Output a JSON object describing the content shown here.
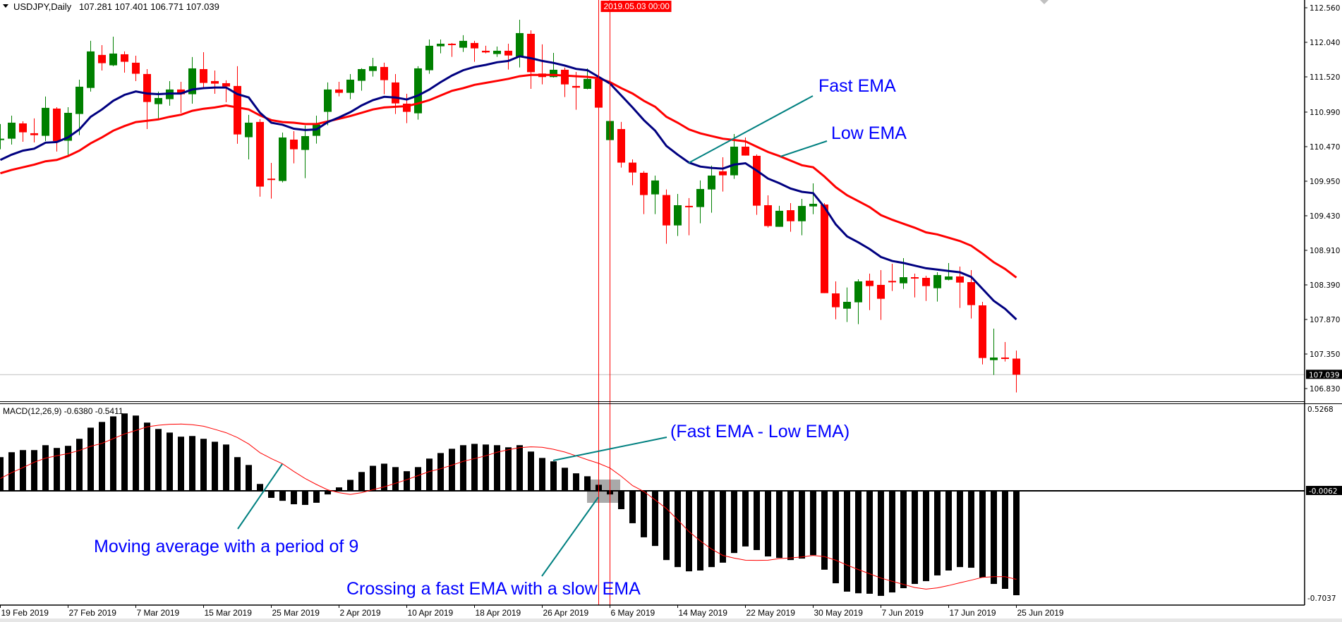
{
  "header": {
    "symbol": "USDJPY,Daily",
    "ohlc": "107.281 107.401 106.771 107.039"
  },
  "macd_header": {
    "label": "MACD(12,26,9) -0.6380 -0.5411"
  },
  "price_axis": {
    "ticks": [
      "112.560",
      "112.040",
      "111.520",
      "110.990",
      "110.470",
      "109.950",
      "109.430",
      "108.910",
      "108.390",
      "107.870",
      "107.350",
      "106.830"
    ],
    "current": "107.039"
  },
  "macd_axis": {
    "top": "0.5268",
    "zero": "-0.0062",
    "bottom": "-0.7037"
  },
  "time_axis": {
    "labels": [
      "19 Feb 2019",
      "27 Feb 2019",
      "7 Mar 2019",
      "15 Mar 2019",
      "25 Mar 2019",
      "2 Apr 2019",
      "10 Apr 2019",
      "18 Apr 2019",
      "26 Apr 2019",
      "6 May 2019",
      "14 May 2019",
      "22 May 2019",
      "30 May 2019",
      "7 Jun 2019",
      "17 Jun 2019",
      "25 Jun 2019"
    ],
    "crosshair_date": "2019.05.03 00:00"
  },
  "annotations": {
    "fast_ema": "Fast EMA",
    "low_ema": "Low EMA",
    "difference": "(Fast EMA - Low EMA)",
    "signal": "Moving average with a period of 9",
    "crossing": "Crossing a fast EMA with a slow EMA"
  },
  "colors": {
    "bull": "#008000",
    "bear": "#ff0000",
    "fast_ema": "#000080",
    "slow_ema": "#ff0000",
    "annotation_text": "#0000ff",
    "annotation_line": "#008080",
    "crosshair": "#ff0000",
    "histogram": "#000000",
    "signal": "#ff0000"
  },
  "chart_data": {
    "type": "candlestick",
    "symbol": "USDJPY",
    "timeframe": "Daily",
    "ylim": [
      106.83,
      112.56
    ],
    "grid": false,
    "ohlc_order": [
      "open",
      "high",
      "low",
      "close"
    ],
    "candles": [
      [
        110.569,
        110.81,
        110.431,
        110.59
      ],
      [
        110.59,
        110.937,
        110.502,
        110.831
      ],
      [
        110.82,
        110.852,
        110.544,
        110.686
      ],
      [
        110.672,
        110.895,
        110.534,
        110.643
      ],
      [
        110.633,
        111.224,
        110.555,
        111.054
      ],
      [
        111.043,
        111.064,
        110.396,
        110.555
      ],
      [
        110.559,
        111.064,
        110.343,
        110.979
      ],
      [
        110.962,
        111.478,
        110.643,
        111.372
      ],
      [
        111.354,
        112.062,
        111.298,
        111.903
      ],
      [
        111.85,
        111.998,
        111.616,
        111.726
      ],
      [
        111.694,
        112.125,
        111.68,
        111.871
      ],
      [
        111.86,
        111.903,
        111.584,
        111.747
      ],
      [
        111.733,
        111.839,
        111.457,
        111.567
      ],
      [
        111.563,
        111.637,
        110.735,
        111.142
      ],
      [
        111.11,
        111.298,
        110.895,
        111.202
      ],
      [
        111.185,
        111.457,
        111.086,
        111.33
      ],
      [
        111.33,
        111.446,
        110.979,
        111.259
      ],
      [
        111.259,
        111.818,
        111.117,
        111.648
      ],
      [
        111.637,
        111.892,
        111.361,
        111.429
      ],
      [
        111.457,
        111.616,
        111.266,
        111.418
      ],
      [
        111.425,
        111.468,
        111.139,
        111.376
      ],
      [
        111.383,
        111.68,
        110.513,
        110.654
      ],
      [
        110.612,
        110.948,
        110.279,
        110.831
      ],
      [
        110.842,
        110.884,
        109.717,
        109.869
      ],
      [
        109.989,
        110.226,
        109.688,
        109.968
      ],
      [
        109.954,
        110.682,
        109.933,
        110.608
      ],
      [
        110.576,
        110.704,
        110.219,
        110.431
      ],
      [
        110.421,
        110.788,
        109.996,
        110.629
      ],
      [
        110.633,
        110.937,
        110.516,
        110.803
      ],
      [
        110.994,
        111.436,
        110.792,
        111.33
      ],
      [
        111.33,
        111.446,
        111.227,
        111.28
      ],
      [
        111.28,
        111.563,
        111.185,
        111.478
      ],
      [
        111.461,
        111.65,
        111.312,
        111.637
      ],
      [
        111.609,
        111.807,
        111.524,
        111.68
      ],
      [
        111.669,
        111.733,
        111.259,
        111.471
      ],
      [
        111.436,
        111.563,
        110.962,
        111.121
      ],
      [
        111.117,
        111.266,
        110.824,
        110.994
      ],
      [
        110.972,
        111.68,
        110.877,
        111.648
      ],
      [
        111.62,
        112.083,
        111.567,
        111.988
      ],
      [
        111.98,
        112.083,
        111.874,
        112.019
      ],
      [
        112.019,
        112.03,
        111.821,
        112.002
      ],
      [
        111.959,
        112.147,
        111.896,
        112.062
      ],
      [
        112.03,
        112.062,
        111.747,
        111.949
      ],
      [
        111.913,
        111.988,
        111.874,
        111.888
      ],
      [
        111.864,
        111.977,
        111.821,
        111.913
      ],
      [
        111.913,
        112.019,
        111.63,
        111.842
      ],
      [
        111.825,
        112.38,
        111.662,
        112.179
      ],
      [
        112.168,
        112.221,
        111.34,
        111.591
      ],
      [
        111.57,
        112.009,
        111.407,
        111.517
      ],
      [
        111.517,
        111.881,
        111.51,
        111.627
      ],
      [
        111.627,
        111.659,
        111.216,
        111.407
      ],
      [
        111.383,
        111.595,
        111.025,
        111.358
      ],
      [
        111.34,
        111.648,
        111.333,
        111.489
      ],
      [
        111.489,
        111.51,
        111.057,
        111.057
      ],
      [
        110.569,
        110.856,
        110.569,
        110.856
      ],
      [
        110.735,
        110.842,
        110.155,
        110.23
      ],
      [
        110.23,
        110.279,
        109.89,
        110.081
      ],
      [
        110.077,
        110.102,
        109.455,
        109.742
      ],
      [
        109.752,
        110.035,
        109.455,
        109.961
      ],
      [
        109.742,
        109.826,
        109.009,
        109.285
      ],
      [
        109.285,
        109.759,
        109.126,
        109.589
      ],
      [
        109.579,
        109.696,
        109.137,
        109.572
      ],
      [
        109.561,
        109.961,
        109.317,
        109.833
      ],
      [
        109.826,
        110.184,
        109.476,
        110.035
      ],
      [
        110.099,
        110.311,
        109.795,
        110.039
      ],
      [
        110.039,
        110.661,
        109.986,
        110.47
      ],
      [
        110.47,
        110.608,
        110.336,
        110.336
      ],
      [
        110.332,
        110.353,
        109.444,
        109.582
      ],
      [
        109.589,
        109.738,
        109.253,
        109.275
      ],
      [
        109.264,
        109.579,
        109.264,
        109.505
      ],
      [
        109.514,
        109.621,
        109.189,
        109.348
      ],
      [
        109.348,
        109.684,
        109.136,
        109.578
      ],
      [
        109.571,
        109.918,
        109.454,
        109.61
      ],
      [
        109.599,
        109.621,
        108.266,
        108.266
      ],
      [
        108.262,
        108.443,
        107.873,
        108.054
      ],
      [
        108.032,
        108.351,
        107.831,
        108.135
      ],
      [
        108.128,
        108.475,
        107.799,
        108.443
      ],
      [
        108.453,
        108.559,
        108.011,
        108.372
      ],
      [
        108.39,
        108.613,
        107.863,
        108.181
      ],
      [
        108.45,
        108.708,
        108.298,
        108.439
      ],
      [
        108.414,
        108.793,
        108.33,
        108.506
      ],
      [
        108.506,
        108.559,
        108.202,
        108.492
      ],
      [
        108.496,
        108.528,
        108.149,
        108.372
      ],
      [
        108.34,
        108.581,
        108.139,
        108.538
      ],
      [
        108.467,
        108.719,
        108.457,
        108.517
      ],
      [
        108.517,
        108.666,
        108.043,
        108.425
      ],
      [
        108.432,
        108.613,
        107.884,
        108.086
      ],
      [
        108.082,
        108.135,
        107.194,
        107.29
      ],
      [
        107.258,
        107.732,
        107.035,
        107.297
      ],
      [
        107.297,
        107.53,
        107.237,
        107.283
      ],
      [
        107.281,
        107.401,
        106.771,
        107.039
      ]
    ],
    "fast_ema": [
      110.27,
      110.35,
      110.41,
      110.44,
      110.53,
      110.54,
      110.61,
      110.73,
      110.92,
      111.03,
      111.16,
      111.25,
      111.3,
      111.27,
      111.26,
      111.27,
      111.27,
      111.33,
      111.35,
      111.36,
      111.36,
      111.26,
      111.21,
      110.98,
      110.83,
      110.8,
      110.74,
      110.72,
      110.73,
      110.84,
      110.91,
      110.99,
      111.09,
      111.17,
      111.22,
      111.21,
      111.18,
      111.24,
      111.33,
      111.44,
      111.54,
      111.62,
      111.67,
      111.7,
      111.74,
      111.76,
      111.83,
      111.8,
      111.76,
      111.73,
      111.69,
      111.64,
      111.62,
      111.52,
      111.42,
      111.24,
      111.06,
      110.87,
      110.71,
      110.48,
      110.35,
      110.23,
      110.17,
      110.15,
      110.14,
      110.2,
      110.22,
      110.11,
      109.99,
      109.92,
      109.84,
      109.79,
      109.77,
      109.56,
      109.3,
      109.12,
      109.03,
      108.93,
      108.81,
      108.75,
      108.72,
      108.68,
      108.64,
      108.62,
      108.6,
      108.58,
      108.51,
      108.33,
      108.15,
      108.03,
      107.87
    ],
    "slow_ema": [
      110.07,
      110.12,
      110.16,
      110.2,
      110.25,
      110.27,
      110.33,
      110.41,
      110.52,
      110.61,
      110.71,
      110.78,
      110.84,
      110.86,
      110.88,
      110.92,
      110.95,
      111.01,
      111.04,
      111.06,
      111.09,
      111.06,
      111.03,
      110.94,
      110.87,
      110.84,
      110.83,
      110.81,
      110.81,
      110.85,
      110.89,
      110.93,
      110.98,
      111.03,
      111.06,
      111.07,
      111.08,
      111.12,
      111.17,
      111.24,
      111.31,
      111.35,
      111.4,
      111.43,
      111.46,
      111.49,
      111.53,
      111.55,
      111.55,
      111.55,
      111.54,
      111.53,
      111.52,
      111.5,
      111.44,
      111.35,
      111.27,
      111.16,
      111.07,
      110.92,
      110.83,
      110.73,
      110.67,
      110.63,
      110.59,
      110.57,
      110.55,
      110.47,
      110.39,
      110.33,
      110.26,
      110.19,
      110.16,
      110.02,
      109.86,
      109.74,
      109.65,
      109.56,
      109.44,
      109.37,
      109.31,
      109.25,
      109.18,
      109.15,
      109.1,
      109.05,
      108.98,
      108.86,
      108.73,
      108.63,
      108.5
    ],
    "macd": {
      "params": "12,26,9",
      "ylim": [
        -0.7037,
        0.5268
      ],
      "histogram": [
        0.206,
        0.236,
        0.249,
        0.249,
        0.279,
        0.262,
        0.275,
        0.318,
        0.386,
        0.421,
        0.455,
        0.473,
        0.46,
        0.417,
        0.378,
        0.356,
        0.331,
        0.335,
        0.318,
        0.3,
        0.283,
        0.206,
        0.158,
        0.042,
        -0.043,
        -0.061,
        -0.082,
        -0.086,
        -0.073,
        -0.022,
        0.021,
        0.067,
        0.115,
        0.153,
        0.166,
        0.145,
        0.12,
        0.145,
        0.197,
        0.231,
        0.257,
        0.279,
        0.287,
        0.283,
        0.279,
        0.266,
        0.279,
        0.24,
        0.201,
        0.18,
        0.141,
        0.107,
        0.089,
        0.037,
        -0.022,
        -0.112,
        -0.198,
        -0.284,
        -0.337,
        -0.423,
        -0.466,
        -0.492,
        -0.487,
        -0.466,
        -0.439,
        -0.38,
        -0.34,
        -0.362,
        -0.401,
        -0.41,
        -0.423,
        -0.414,
        -0.393,
        -0.482,
        -0.565,
        -0.616,
        -0.626,
        -0.629,
        -0.642,
        -0.621,
        -0.595,
        -0.569,
        -0.552,
        -0.517,
        -0.487,
        -0.466,
        -0.47,
        -0.53,
        -0.569,
        -0.599,
        -0.638
      ],
      "signal": [
        0.075,
        0.111,
        0.142,
        0.175,
        0.2,
        0.214,
        0.228,
        0.247,
        0.272,
        0.29,
        0.319,
        0.348,
        0.369,
        0.391,
        0.401,
        0.407,
        0.408,
        0.404,
        0.395,
        0.376,
        0.355,
        0.326,
        0.286,
        0.233,
        0.197,
        0.165,
        0.118,
        0.075,
        0.039,
        0.006,
        -0.011,
        -0.022,
        -0.011,
        0.007,
        0.024,
        0.046,
        0.068,
        0.093,
        0.118,
        0.135,
        0.157,
        0.18,
        0.197,
        0.214,
        0.236,
        0.251,
        0.264,
        0.269,
        0.266,
        0.254,
        0.237,
        0.214,
        0.19,
        0.168,
        0.139,
        0.089,
        0.032,
        -0.004,
        -0.055,
        -0.108,
        -0.177,
        -0.249,
        -0.306,
        -0.356,
        -0.395,
        -0.411,
        -0.424,
        -0.425,
        -0.424,
        -0.414,
        -0.41,
        -0.404,
        -0.395,
        -0.402,
        -0.424,
        -0.454,
        -0.481,
        -0.507,
        -0.533,
        -0.553,
        -0.572,
        -0.591,
        -0.601,
        -0.593,
        -0.579,
        -0.562,
        -0.546,
        -0.529,
        -0.525,
        -0.525,
        -0.541
      ]
    },
    "crosshair_bars": [
      "2019.05.03",
      "next bar"
    ]
  }
}
